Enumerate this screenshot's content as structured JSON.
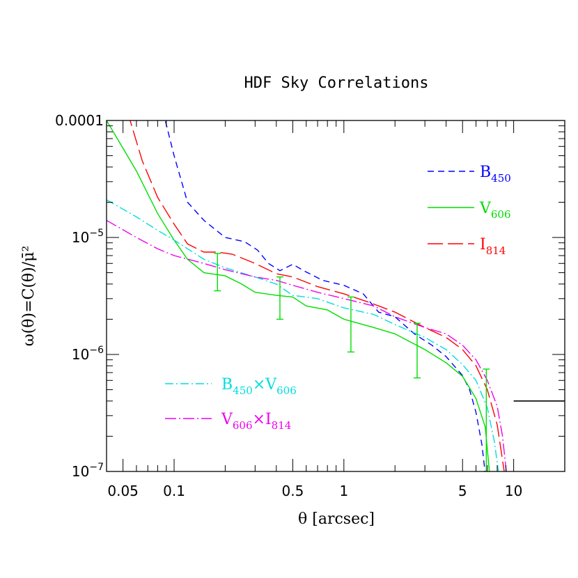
{
  "chart_data": {
    "type": "line",
    "title": "HDF Sky Correlations",
    "xlabel": "θ [arcsec]",
    "ylabel": "ω(θ)=C(θ)/μ̄²",
    "xscale": "log",
    "yscale": "log",
    "xlim": [
      0.04,
      20
    ],
    "ylim": [
      1e-07,
      0.0001
    ],
    "xtick_labels": [
      {
        "value": 0.05,
        "label": "0.05"
      },
      {
        "value": 0.1,
        "label": "0.1"
      },
      {
        "value": 0.5,
        "label": "0.5"
      },
      {
        "value": 1,
        "label": "1"
      },
      {
        "value": 5,
        "label": "5"
      },
      {
        "value": 10,
        "label": "10"
      }
    ],
    "ytick_labels": [
      {
        "value": 0.0001,
        "label": "0.0001"
      },
      {
        "value": 1e-05,
        "base": "10",
        "exp": "−5"
      },
      {
        "value": 1e-06,
        "base": "10",
        "exp": "−6"
      },
      {
        "value": 1e-07,
        "base": "10",
        "exp": "−7"
      }
    ],
    "series": [
      {
        "name": "B450",
        "name_base": "B",
        "name_sub": "450",
        "color": "#0000ff",
        "dash": "9 6",
        "x": [
          0.086,
          0.1,
          0.12,
          0.15,
          0.2,
          0.26,
          0.31,
          0.36,
          0.42,
          0.5,
          0.58,
          0.75,
          1.0,
          1.3,
          1.6,
          2.0,
          2.6,
          3.3,
          4.0,
          5.0,
          5.5,
          6.0,
          6.5,
          6.9
        ],
        "y": [
          0.00012,
          5e-05,
          2e-05,
          1.4e-05,
          1e-05,
          9.2e-06,
          7.8e-06,
          6e-06,
          5.2e-06,
          5.9e-06,
          5.2e-06,
          4.3e-06,
          3.9e-06,
          3.3e-06,
          2.3e-06,
          2.1e-06,
          1.5e-06,
          1.2e-06,
          9.6e-07,
          6.6e-07,
          5e-07,
          3.2e-07,
          1.7e-07,
          8e-08
        ]
      },
      {
        "name": "V606",
        "name_base": "V",
        "name_sub": "606",
        "color": "#00dd00",
        "dash": "",
        "x": [
          0.04,
          0.06,
          0.08,
          0.1,
          0.12,
          0.15,
          0.2,
          0.25,
          0.3,
          0.4,
          0.5,
          0.6,
          0.8,
          1.0,
          1.5,
          2.0,
          3.0,
          4.0,
          5.0,
          6.0,
          6.8,
          7.3
        ],
        "y": [
          0.0001,
          3.7e-05,
          1.6e-05,
          9.5e-06,
          6.5e-06,
          5e-06,
          4.7e-06,
          4e-06,
          3.4e-06,
          3.2e-06,
          3.1e-06,
          2.6e-06,
          2.4e-06,
          2e-06,
          1.7e-06,
          1.5e-06,
          1.1e-06,
          8.5e-07,
          6.5e-07,
          4.2e-07,
          2.4e-07,
          8e-08
        ]
      },
      {
        "name": "I814",
        "name_base": "I",
        "name_sub": "814",
        "color": "#ff0000",
        "dash": "22 7",
        "x": [
          0.053,
          0.065,
          0.08,
          0.1,
          0.12,
          0.15,
          0.18,
          0.22,
          0.3,
          0.4,
          0.5,
          0.7,
          1.0,
          1.4,
          2.0,
          3.0,
          4.0,
          5.0,
          6.0,
          7.0,
          8.0,
          9.0
        ],
        "y": [
          0.00012,
          4.5e-05,
          2.2e-05,
          1.3e-05,
          8.8e-06,
          7.5e-06,
          7.5e-06,
          7.2e-06,
          6e-06,
          4.9e-06,
          4.6e-06,
          3.8e-06,
          3.3e-06,
          2.8e-06,
          2.3e-06,
          1.7e-06,
          1.4e-06,
          1.1e-06,
          8e-07,
          5e-07,
          2.5e-07,
          8e-08
        ]
      },
      {
        "name": "B450×V606",
        "name_parts": [
          "B",
          "450",
          "×V",
          "606"
        ],
        "color": "#00dddd",
        "dash": "12 4 2 4",
        "x": [
          0.04,
          0.06,
          0.08,
          0.1,
          0.15,
          0.2,
          0.3,
          0.4,
          0.5,
          0.7,
          1.0,
          1.5,
          2.0,
          3.0,
          4.0,
          5.0,
          6.0,
          7.0,
          7.7,
          8.3
        ],
        "y": [
          2.1e-05,
          1.5e-05,
          1.15e-05,
          9.5e-06,
          6.5e-06,
          5.5e-06,
          4.6e-06,
          4e-06,
          3.2e-06,
          3e-06,
          2.5e-06,
          2.2e-06,
          1.8e-06,
          1.4e-06,
          1.1e-06,
          8.2e-07,
          6e-07,
          3.5e-07,
          1.8e-07,
          8e-08
        ]
      },
      {
        "name": "V606×I814",
        "name_parts": [
          "V",
          "606",
          "×I",
          "814"
        ],
        "color": "#ee00ee",
        "dash": "16 4 2 4",
        "x": [
          0.04,
          0.06,
          0.08,
          0.1,
          0.15,
          0.2,
          0.3,
          0.4,
          0.5,
          0.7,
          1.0,
          1.5,
          2.0,
          3.0,
          4.0,
          5.0,
          6.0,
          7.0,
          8.0,
          8.6,
          9.2
        ],
        "y": [
          1.4e-05,
          1e-05,
          8e-06,
          7e-06,
          6e-06,
          5.3e-06,
          4.6e-06,
          4.3e-06,
          3.9e-06,
          3.4e-06,
          3e-06,
          2.6e-06,
          2.1e-06,
          1.7e-06,
          1.5e-06,
          1.2e-06,
          9e-07,
          6e-07,
          3.6e-07,
          2e-07,
          8e-08
        ]
      }
    ],
    "error_bars": {
      "color": "#00dd00",
      "points": [
        {
          "x": 0.18,
          "lo": 3.5e-06,
          "hi": 7.3e-06
        },
        {
          "x": 0.42,
          "lo": 2e-06,
          "hi": 4.6e-06
        },
        {
          "x": 1.1,
          "lo": 1.05e-06,
          "hi": 3.1e-06
        },
        {
          "x": 2.7,
          "lo": 6.3e-07,
          "hi": 1.85e-06
        },
        {
          "x": 6.9,
          "lo": 1e-07,
          "hi": 7.5e-07
        }
      ]
    },
    "reference_line": {
      "x": [
        10,
        20
      ],
      "y": 4e-07,
      "color": "#000000"
    },
    "legend": [
      {
        "series": 0,
        "placement": "top-right"
      },
      {
        "series": 1,
        "placement": "top-right"
      },
      {
        "series": 2,
        "placement": "top-right"
      },
      {
        "series": 3,
        "placement": "bottom-left"
      },
      {
        "series": 4,
        "placement": "bottom-left"
      }
    ]
  }
}
